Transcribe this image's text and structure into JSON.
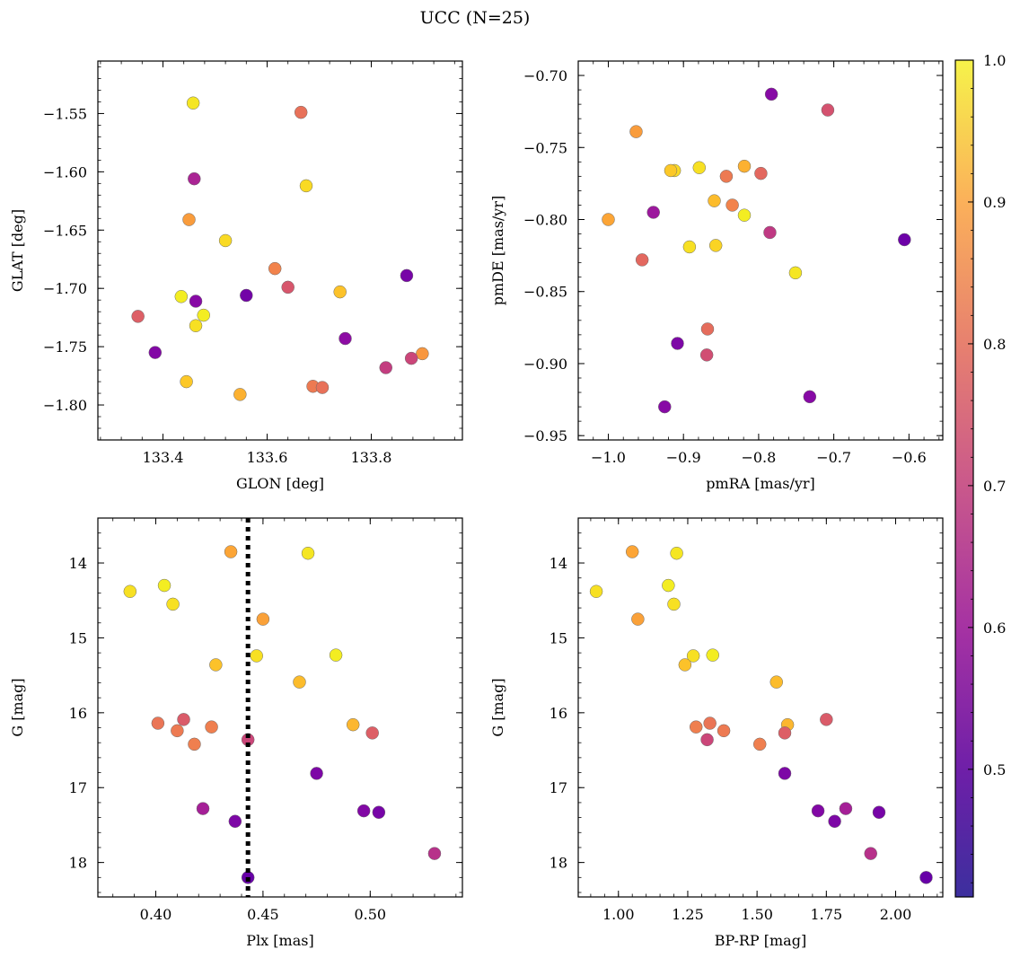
{
  "suptitle": "UCC (N=25)",
  "colorbar": {
    "cmap": "plasma",
    "range": [
      0.41,
      1.0
    ],
    "ticks": [
      0.5,
      0.6,
      0.7,
      0.8,
      0.9,
      1.0
    ],
    "tick_labels": [
      "0.5",
      "0.6",
      "0.7",
      "0.8",
      "0.9",
      "1.0"
    ]
  },
  "chart_data": [
    {
      "type": "scatter",
      "xlabel": "GLON [deg]",
      "ylabel": "GLAT [deg]",
      "xlim": [
        133.275,
        133.975
      ],
      "ylim": [
        -1.83,
        -1.505
      ],
      "xticks": [
        133.4,
        133.6,
        133.8
      ],
      "xtick_labels": [
        "133.4",
        "133.6",
        "133.8"
      ],
      "yticks": [
        -1.55,
        -1.6,
        -1.65,
        -1.7,
        -1.75,
        -1.8
      ],
      "ytick_labels": [
        "−1.55",
        "−1.60",
        "−1.65",
        "−1.70",
        "−1.75",
        "−1.80"
      ],
      "x": [
        133.458,
        133.665,
        133.46,
        133.675,
        133.45,
        133.52,
        133.615,
        133.64,
        133.435,
        133.56,
        133.74,
        133.463,
        133.868,
        133.478,
        133.352,
        133.463,
        133.75,
        133.385,
        133.898,
        133.877,
        133.828,
        133.445,
        133.688,
        133.706,
        133.548
      ],
      "y": [
        -1.541,
        -1.549,
        -1.606,
        -1.612,
        -1.641,
        -1.659,
        -1.683,
        -1.699,
        -1.707,
        -1.706,
        -1.703,
        -1.711,
        -1.689,
        -1.723,
        -1.724,
        -1.732,
        -1.743,
        -1.755,
        -1.756,
        -1.76,
        -1.768,
        -1.78,
        -1.784,
        -1.785,
        -1.791
      ],
      "c": [
        0.97,
        0.75,
        0.57,
        0.95,
        0.84,
        0.95,
        0.79,
        0.69,
        0.98,
        0.46,
        0.91,
        0.5,
        0.47,
        0.98,
        0.71,
        0.96,
        0.51,
        0.49,
        0.83,
        0.65,
        0.63,
        0.92,
        0.77,
        0.75,
        0.88
      ]
    },
    {
      "type": "scatter",
      "xlabel": "pmRA [mas/yr]",
      "ylabel": "pmDE [mas/yr]",
      "xlim": [
        -1.04,
        -0.555
      ],
      "ylim": [
        -0.953,
        -0.69
      ],
      "xticks": [
        -1.0,
        -0.9,
        -0.8,
        -0.7,
        -0.6
      ],
      "xtick_labels": [
        "−1.0",
        "−0.9",
        "−0.8",
        "−0.7",
        "−0.6"
      ],
      "yticks": [
        -0.7,
        -0.75,
        -0.8,
        -0.85,
        -0.9,
        -0.95
      ],
      "ytick_labels": [
        "−0.70",
        "−0.75",
        "−0.80",
        "−0.85",
        "−0.90",
        "−0.95"
      ],
      "x": [
        -0.783,
        -0.708,
        -0.963,
        -0.912,
        -0.917,
        -0.879,
        -0.843,
        -0.819,
        -0.797,
        -0.859,
        -0.835,
        -0.819,
        -0.94,
        -1.0,
        -0.892,
        -0.857,
        -0.785,
        -0.955,
        -0.751,
        -0.606,
        -0.868,
        -0.908,
        -0.869,
        -0.732,
        -0.925
      ],
      "y": [
        -0.713,
        -0.724,
        -0.739,
        -0.766,
        -0.766,
        -0.764,
        -0.77,
        -0.763,
        -0.768,
        -0.787,
        -0.79,
        -0.797,
        -0.795,
        -0.8,
        -0.819,
        -0.818,
        -0.809,
        -0.828,
        -0.837,
        -0.814,
        -0.876,
        -0.886,
        -0.894,
        -0.923,
        -0.93
      ],
      "c": [
        0.5,
        0.68,
        0.84,
        0.95,
        0.92,
        0.96,
        0.77,
        0.88,
        0.73,
        0.9,
        0.79,
        0.98,
        0.54,
        0.86,
        0.96,
        0.94,
        0.62,
        0.73,
        0.97,
        0.45,
        0.74,
        0.48,
        0.67,
        0.5,
        0.5
      ]
    },
    {
      "type": "scatter",
      "xlabel": "Plx [mas]",
      "ylabel": "G [mag]",
      "xlim": [
        0.373,
        0.543
      ],
      "ylim": [
        18.46,
        13.4
      ],
      "invert_y": true,
      "xticks": [
        0.4,
        0.45,
        0.5
      ],
      "xtick_labels": [
        "0.40",
        "0.45",
        "0.50"
      ],
      "yticks": [
        14,
        15,
        16,
        17,
        18
      ],
      "ytick_labels": [
        "14",
        "15",
        "16",
        "17",
        "18"
      ],
      "vline": {
        "x": 0.443,
        "style": "dotted",
        "color": "#000000"
      },
      "x": [
        0.435,
        0.471,
        0.388,
        0.404,
        0.408,
        0.45,
        0.447,
        0.484,
        0.428,
        0.467,
        0.401,
        0.413,
        0.41,
        0.426,
        0.418,
        0.492,
        0.501,
        0.443,
        0.475,
        0.422,
        0.497,
        0.504,
        0.437,
        0.53,
        0.443
      ],
      "y": [
        13.85,
        13.87,
        14.38,
        14.3,
        14.55,
        14.75,
        15.24,
        15.23,
        15.36,
        15.59,
        16.14,
        16.09,
        16.24,
        16.19,
        16.42,
        16.16,
        16.27,
        16.36,
        16.81,
        17.28,
        17.31,
        17.33,
        17.45,
        17.88,
        18.2
      ],
      "c": [
        0.86,
        0.97,
        0.96,
        0.98,
        0.96,
        0.85,
        0.96,
        0.98,
        0.91,
        0.9,
        0.76,
        0.7,
        0.77,
        0.78,
        0.78,
        0.89,
        0.71,
        0.65,
        0.48,
        0.56,
        0.49,
        0.47,
        0.48,
        0.6,
        0.44
      ]
    },
    {
      "type": "scatter",
      "xlabel": "BP-RP [mag]",
      "ylabel": "G [mag]",
      "xlim": [
        0.855,
        2.17
      ],
      "ylim": [
        18.46,
        13.4
      ],
      "invert_y": true,
      "xticks": [
        1.0,
        1.25,
        1.5,
        1.75,
        2.0
      ],
      "xtick_labels": [
        "1.00",
        "1.25",
        "1.50",
        "1.75",
        "2.00"
      ],
      "yticks": [
        14,
        15,
        16,
        17,
        18
      ],
      "ytick_labels": [
        "14",
        "15",
        "16",
        "17",
        "18"
      ],
      "x": [
        1.05,
        1.21,
        0.92,
        1.18,
        1.2,
        1.07,
        1.27,
        1.34,
        1.24,
        1.57,
        1.33,
        1.75,
        1.38,
        1.28,
        1.51,
        1.61,
        1.6,
        1.32,
        1.6,
        1.82,
        1.72,
        1.94,
        1.78,
        1.91,
        2.11
      ],
      "y": [
        13.85,
        13.87,
        14.38,
        14.3,
        14.55,
        14.75,
        15.24,
        15.23,
        15.36,
        15.59,
        16.14,
        16.09,
        16.24,
        16.19,
        16.42,
        16.16,
        16.27,
        16.36,
        16.81,
        17.28,
        17.31,
        17.33,
        17.45,
        17.88,
        18.2
      ],
      "c": [
        0.86,
        0.97,
        0.96,
        0.98,
        0.96,
        0.85,
        0.96,
        0.98,
        0.91,
        0.9,
        0.76,
        0.7,
        0.77,
        0.78,
        0.78,
        0.89,
        0.71,
        0.65,
        0.48,
        0.56,
        0.49,
        0.47,
        0.48,
        0.6,
        0.44
      ]
    }
  ]
}
